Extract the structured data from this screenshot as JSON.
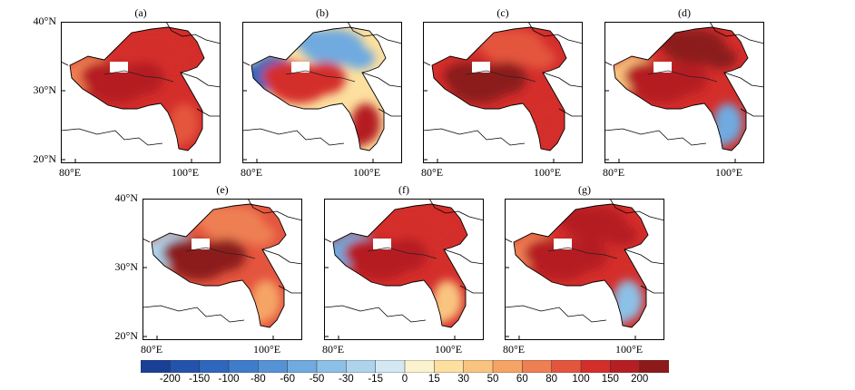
{
  "chart_data": {
    "type": "heatmap",
    "panels": [
      {
        "label": "(a)",
        "xticks": [
          "80°E",
          "100°E"
        ],
        "yticks": [
          "40°N",
          "30°N",
          "20°N"
        ],
        "dominant": "mostly positive, west-central core",
        "west_value": 60,
        "core_value": 150,
        "north_value": 120,
        "southeast_value": 80
      },
      {
        "label": "(b)",
        "xticks": [
          "80°E",
          "100°E"
        ],
        "yticks": [],
        "dominant": "mixed; negative far west and north",
        "west_value": -150,
        "core_value": 120,
        "north_value": -60,
        "southeast_value": 150
      },
      {
        "label": "(c)",
        "xticks": [
          "80°E",
          "100°E"
        ],
        "yticks": [],
        "dominant": "strong positive",
        "west_value": 120,
        "core_value": 200,
        "north_value": 80,
        "southeast_value": 120
      },
      {
        "label": "(d)",
        "xticks": [
          "80°E",
          "100°E"
        ],
        "yticks": [],
        "dominant": "strong positive; negative southeast",
        "west_value": 30,
        "core_value": 180,
        "north_value": 200,
        "southeast_value": -60
      },
      {
        "label": "(e)",
        "xticks": [
          "80°E",
          "100°E"
        ],
        "yticks": [
          "40°N",
          "30°N",
          "20°N"
        ],
        "dominant": "strong positive core",
        "west_value": -30,
        "core_value": 200,
        "north_value": 60,
        "southeast_value": 50
      },
      {
        "label": "(f)",
        "xticks": [
          "80°E",
          "100°E"
        ],
        "yticks": [],
        "dominant": "positive; negative far west",
        "west_value": -60,
        "core_value": 150,
        "north_value": 120,
        "southeast_value": 40
      },
      {
        "label": "(g)",
        "xticks": [
          "80°E",
          "100°E"
        ],
        "yticks": [],
        "dominant": "strong positive; negative southeast",
        "west_value": 60,
        "core_value": 180,
        "north_value": 150,
        "southeast_value": -40
      }
    ],
    "colorbar": {
      "ticks": [
        "-200",
        "-150",
        "-100",
        "-80",
        "-60",
        "-50",
        "-30",
        "-15",
        "0",
        "15",
        "30",
        "50",
        "60",
        "80",
        "100",
        "150",
        "200"
      ],
      "colors": [
        "#1a3f96",
        "#2353ac",
        "#2f66be",
        "#3f7ccb",
        "#5693d6",
        "#70aadf",
        "#8dc0e6",
        "#aed4ec",
        "#d3e8f2",
        "#fbf3cf",
        "#fde0a0",
        "#f9c480",
        "#f5a466",
        "#ee7f52",
        "#e4553e",
        "#d42e2b",
        "#b51f23",
        "#8c1a1a"
      ]
    }
  }
}
